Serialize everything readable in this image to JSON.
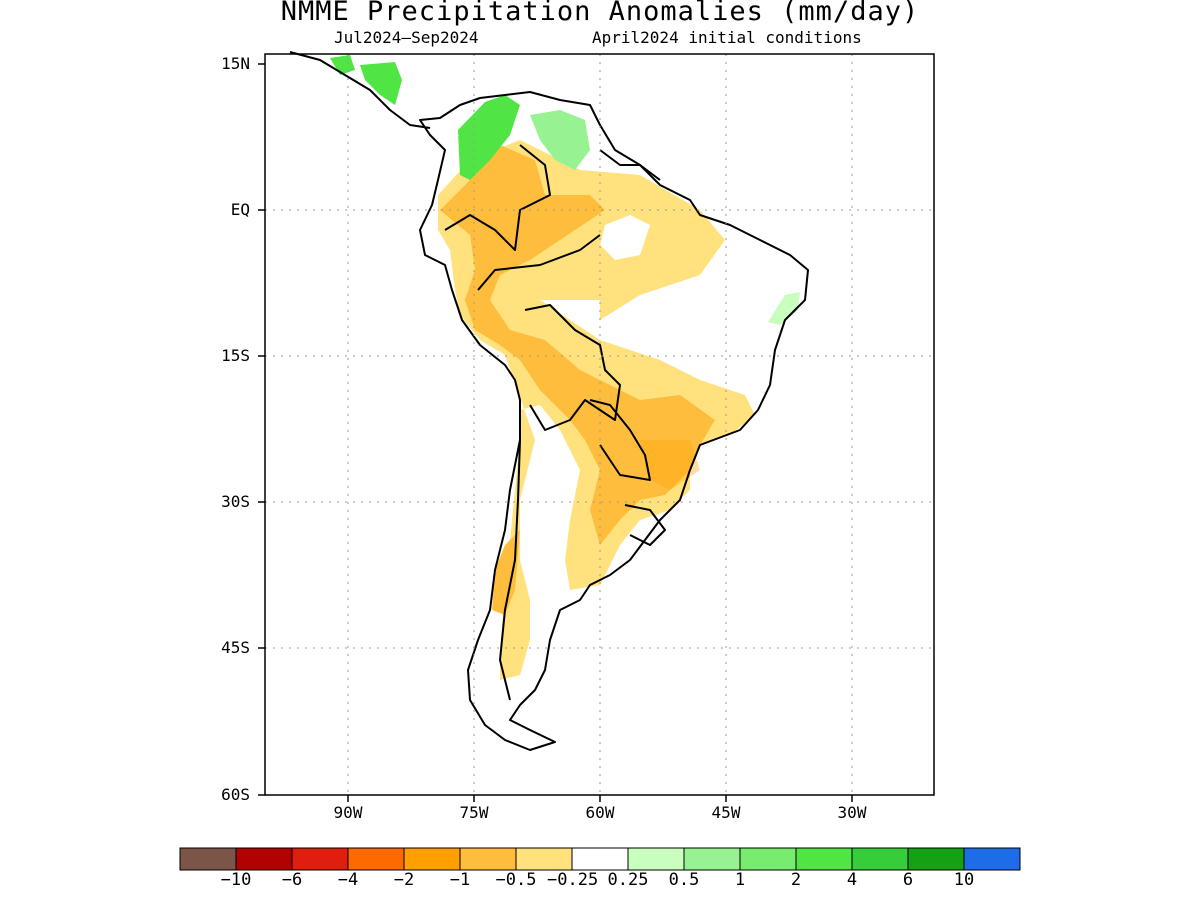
{
  "title": "NMME Precipitation Anomalies (mm/day)",
  "subtitle_left": "Jul2024–Sep2024",
  "subtitle_right": "April2024 initial conditions",
  "y_ticks": [
    "15N",
    "EQ",
    "15S",
    "30S",
    "45S",
    "60S"
  ],
  "x_ticks": [
    "90W",
    "75W",
    "60W",
    "45W",
    "30W"
  ],
  "map": {
    "lon_range": [
      -100,
      -20
    ],
    "lat_range": [
      -60,
      15
    ],
    "grid": true
  },
  "colorbar": {
    "labels": [
      "−10",
      "−6",
      "−4",
      "−2",
      "−1",
      "−0.5",
      "−0.25",
      "0.25",
      "0.5",
      "1",
      "2",
      "4",
      "6",
      "10"
    ],
    "colors": [
      "#7b5548",
      "#b30000",
      "#e01e0e",
      "#ff6a00",
      "#ffa000",
      "#ffbd3d",
      "#ffe27d",
      "#ffffff",
      "#c8ffbe",
      "#97f391",
      "#78ec6e",
      "#50e444",
      "#36cc3a",
      "#14a114",
      "#1f6ce8"
    ]
  }
}
